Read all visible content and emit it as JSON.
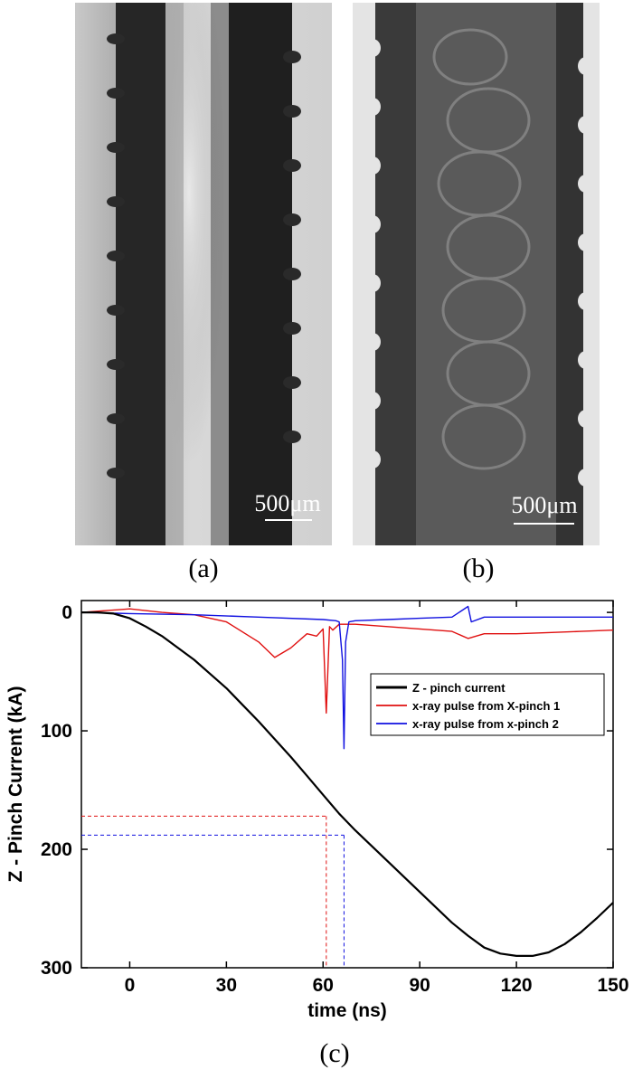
{
  "panels": {
    "a": {
      "caption": "(a)",
      "scale_bar_label": "500μm"
    },
    "b": {
      "caption": "(b)",
      "scale_bar_label": "500μm"
    },
    "c": {
      "caption": "(c)"
    }
  },
  "chart_data": {
    "type": "line",
    "xlabel": "time (ns)",
    "ylabel": "Z - Pinch Current (kA)",
    "xlim": [
      -15,
      150
    ],
    "ylim": [
      300,
      -10
    ],
    "y_inverted": true,
    "x_ticks": [
      0,
      30,
      60,
      90,
      120,
      150
    ],
    "y_ticks": [
      0,
      100,
      200,
      300
    ],
    "legend_position": "center-right",
    "series": [
      {
        "name": "Z - pinch current",
        "color": "#000000",
        "x": [
          -15,
          -10,
          -5,
          0,
          5,
          10,
          15,
          20,
          25,
          30,
          35,
          40,
          45,
          50,
          55,
          60,
          65,
          70,
          75,
          80,
          85,
          90,
          95,
          100,
          105,
          110,
          115,
          120,
          125,
          130,
          135,
          140,
          145,
          150
        ],
        "values": [
          0,
          0,
          1,
          5,
          12,
          20,
          30,
          40,
          52,
          64,
          78,
          92,
          107,
          122,
          138,
          154,
          170,
          184,
          197,
          210,
          223,
          236,
          249,
          262,
          273,
          283,
          288,
          290,
          290,
          287,
          280,
          270,
          258,
          245
        ]
      },
      {
        "name": "x-ray pulse from X-pinch 1",
        "color": "#e01010",
        "x": [
          -15,
          0,
          10,
          20,
          30,
          40,
          45,
          50,
          55,
          58,
          60,
          61,
          62,
          63,
          65,
          70,
          80,
          90,
          100,
          105,
          110,
          120,
          130,
          140,
          150
        ],
        "values": [
          0,
          -3,
          0,
          2,
          8,
          25,
          38,
          30,
          18,
          20,
          14,
          85,
          12,
          15,
          10,
          10,
          12,
          14,
          16,
          22,
          18,
          18,
          17,
          16,
          15
        ]
      },
      {
        "name": "x-ray pulse from x-pinch 2",
        "color": "#1010e0",
        "x": [
          -15,
          0,
          20,
          40,
          60,
          64,
          65,
          66,
          66.5,
          67,
          68,
          70,
          80,
          90,
          100,
          105,
          106,
          110,
          120,
          130,
          140,
          150
        ],
        "values": [
          0,
          1,
          2,
          4,
          6,
          7,
          8,
          40,
          115,
          25,
          8,
          7,
          6,
          5,
          4,
          -5,
          8,
          4,
          4,
          4,
          4,
          4
        ]
      }
    ],
    "annotations": [
      {
        "style": "dashed",
        "color": "#e01010",
        "x": 61,
        "y": 172
      },
      {
        "style": "dashed",
        "color": "#1010e0",
        "x": 66.5,
        "y": 188
      }
    ]
  }
}
